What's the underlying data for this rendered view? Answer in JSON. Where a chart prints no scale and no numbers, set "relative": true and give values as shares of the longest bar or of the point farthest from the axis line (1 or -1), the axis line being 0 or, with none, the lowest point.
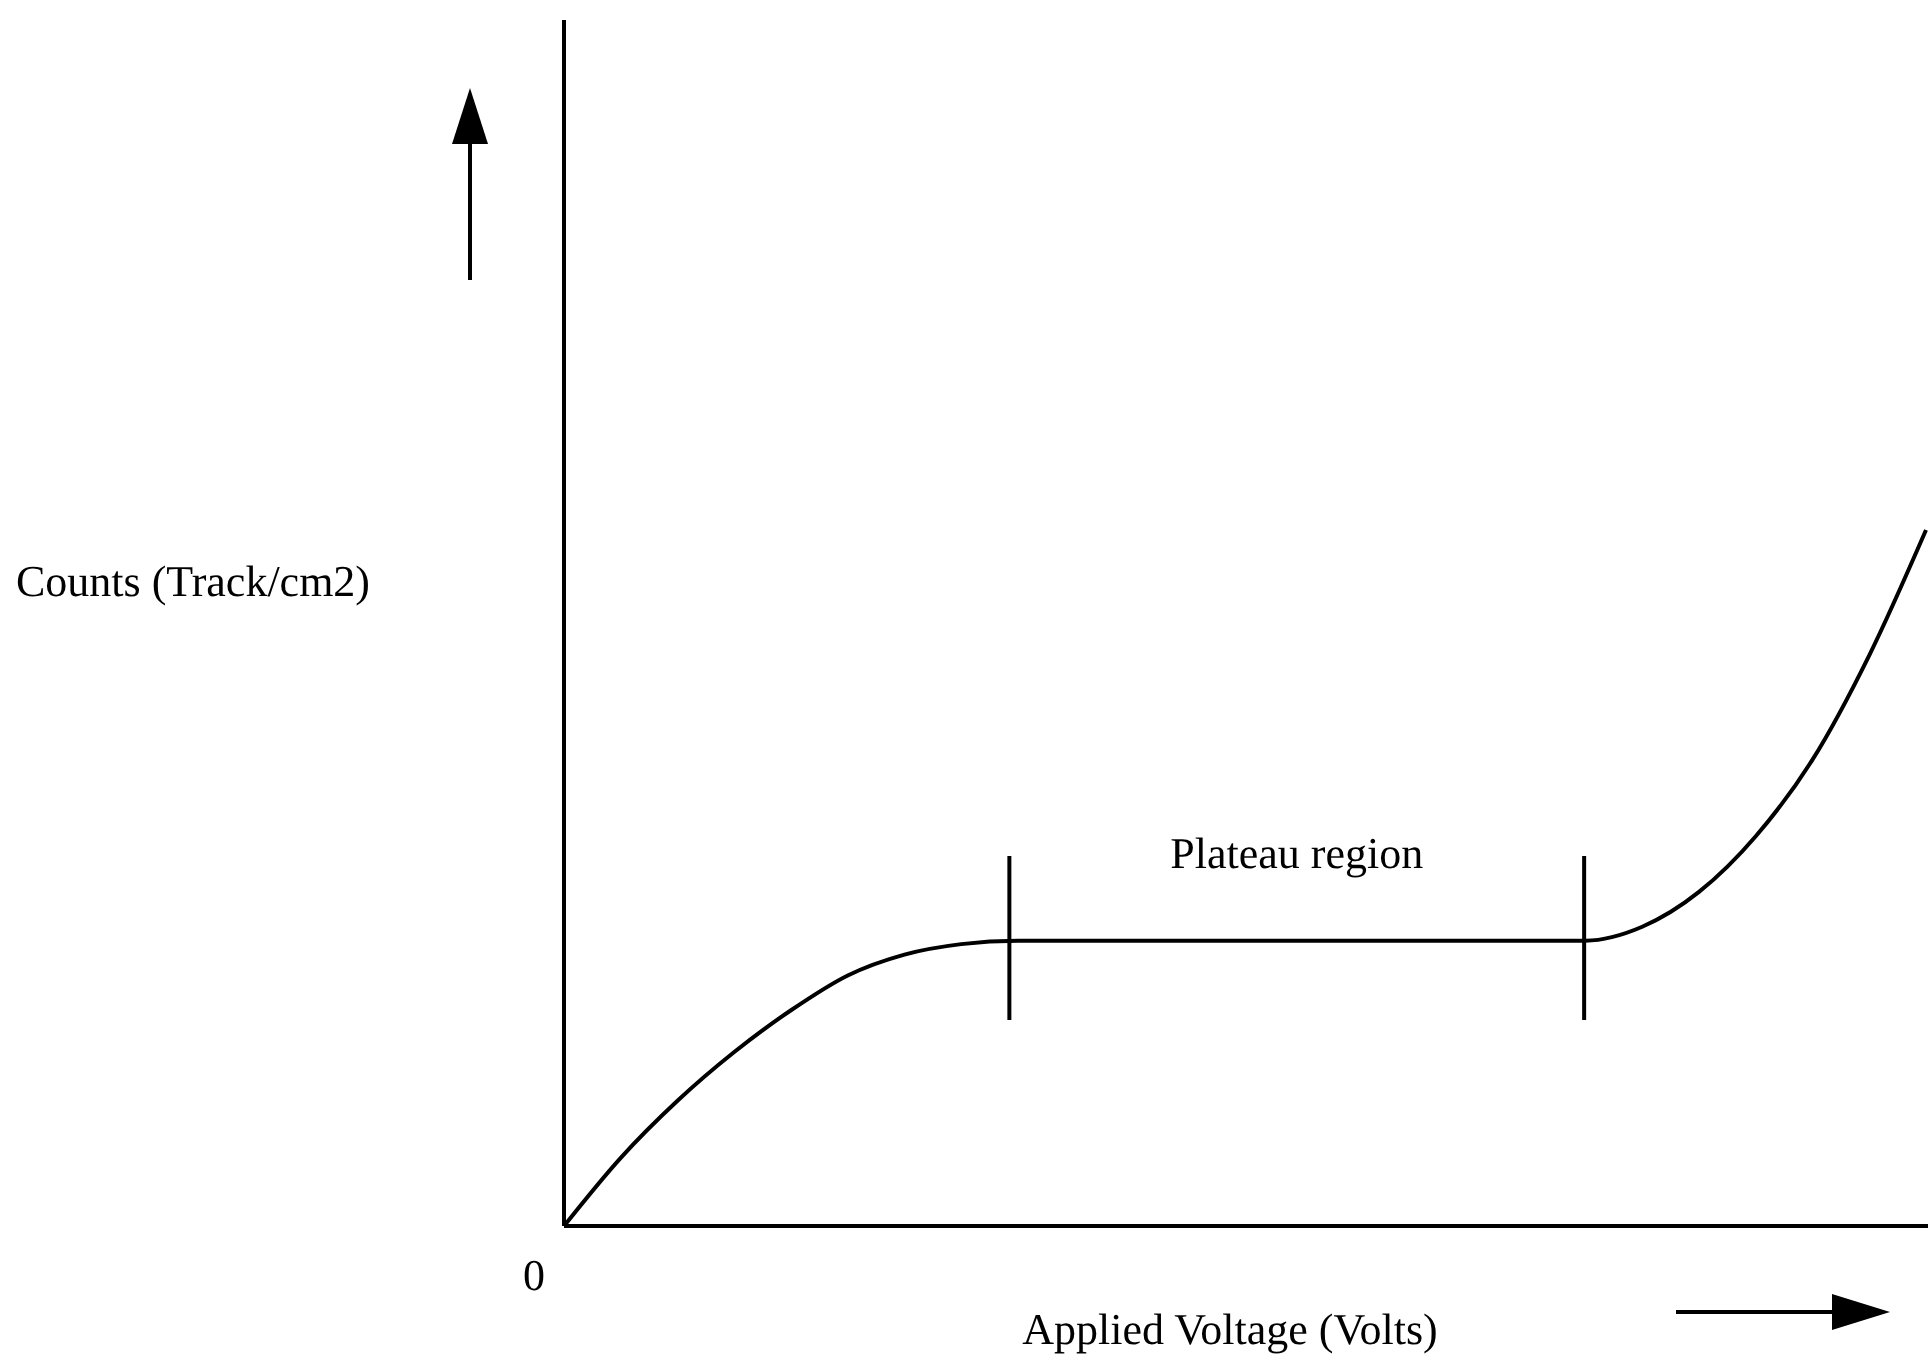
{
  "chart_data": {
    "type": "line",
    "relative": true,
    "xlabel": "Applied Voltage (Volts)",
    "ylabel": "Counts (Track/cm2)",
    "color": "#000000",
    "marker": "none",
    "categories": [
      null,
      null,
      null,
      null,
      null,
      null,
      null,
      null,
      null,
      null,
      null,
      null,
      null,
      null,
      null,
      null,
      null,
      null,
      null,
      null,
      null,
      null,
      null,
      null,
      null
    ],
    "values": [
      0,
      0.098,
      0.18,
      0.25,
      0.31,
      0.36,
      0.39,
      0.405,
      0.41,
      0.41,
      0.41,
      0.41,
      0.41,
      0.41,
      0.41,
      0.41,
      0.41,
      0.41,
      0.41,
      0.43,
      0.48,
      0.56,
      0.67,
      0.82,
      1.0
    ],
    "annotations": [
      "Plateau region",
      "0"
    ]
  }
}
